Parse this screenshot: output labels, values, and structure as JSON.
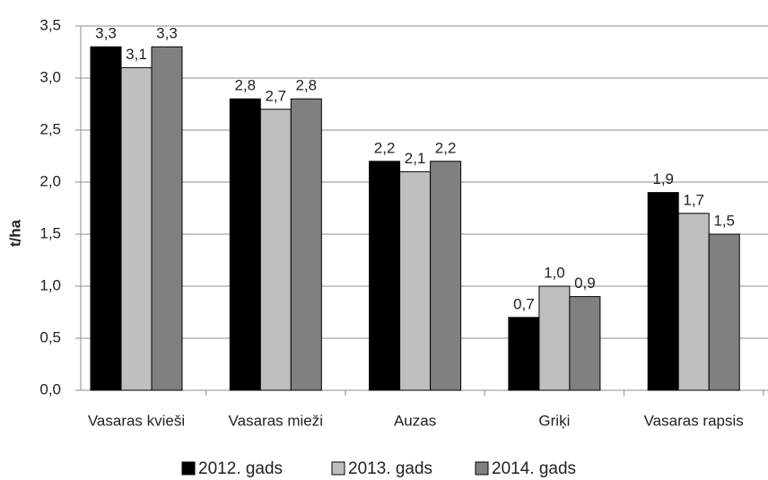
{
  "chart_data": {
    "type": "bar",
    "y_label": "t/ha",
    "categories": [
      "Vasaras kvieši",
      "Vasaras mieži",
      "Auzas",
      "Griķi",
      "Vasaras rapsis"
    ],
    "series": [
      {
        "name": "2012. gads",
        "color": "#000000",
        "values": [
          3.3,
          2.8,
          2.2,
          0.7,
          1.9
        ],
        "value_labels": [
          "3,3",
          "2,8",
          "2,2",
          "0,7",
          "1,9"
        ]
      },
      {
        "name": "2013. gads",
        "color": "#bfbfbf",
        "values": [
          3.1,
          2.7,
          2.1,
          1.0,
          1.7
        ],
        "value_labels": [
          "3,1",
          "2,7",
          "2,1",
          "1,0",
          "1,7"
        ]
      },
      {
        "name": "2014. gads",
        "color": "#808080",
        "values": [
          3.3,
          2.8,
          2.2,
          0.9,
          1.5
        ],
        "value_labels": [
          "3,3",
          "2,8",
          "2,2",
          "0,9",
          "1,5"
        ]
      }
    ],
    "ylim": [
      0,
      3.5
    ],
    "yticks": [
      {
        "value": 0,
        "label": "0,0"
      },
      {
        "value": 0.5,
        "label": "0,5"
      },
      {
        "value": 1,
        "label": "1,0"
      },
      {
        "value": 1.5,
        "label": "1,5"
      },
      {
        "value": 2,
        "label": "2,0"
      },
      {
        "value": 2.5,
        "label": "2,5"
      },
      {
        "value": 3,
        "label": "3,0"
      },
      {
        "value": 3.5,
        "label": "3,5"
      }
    ],
    "grid": true,
    "legend": "bottom"
  }
}
